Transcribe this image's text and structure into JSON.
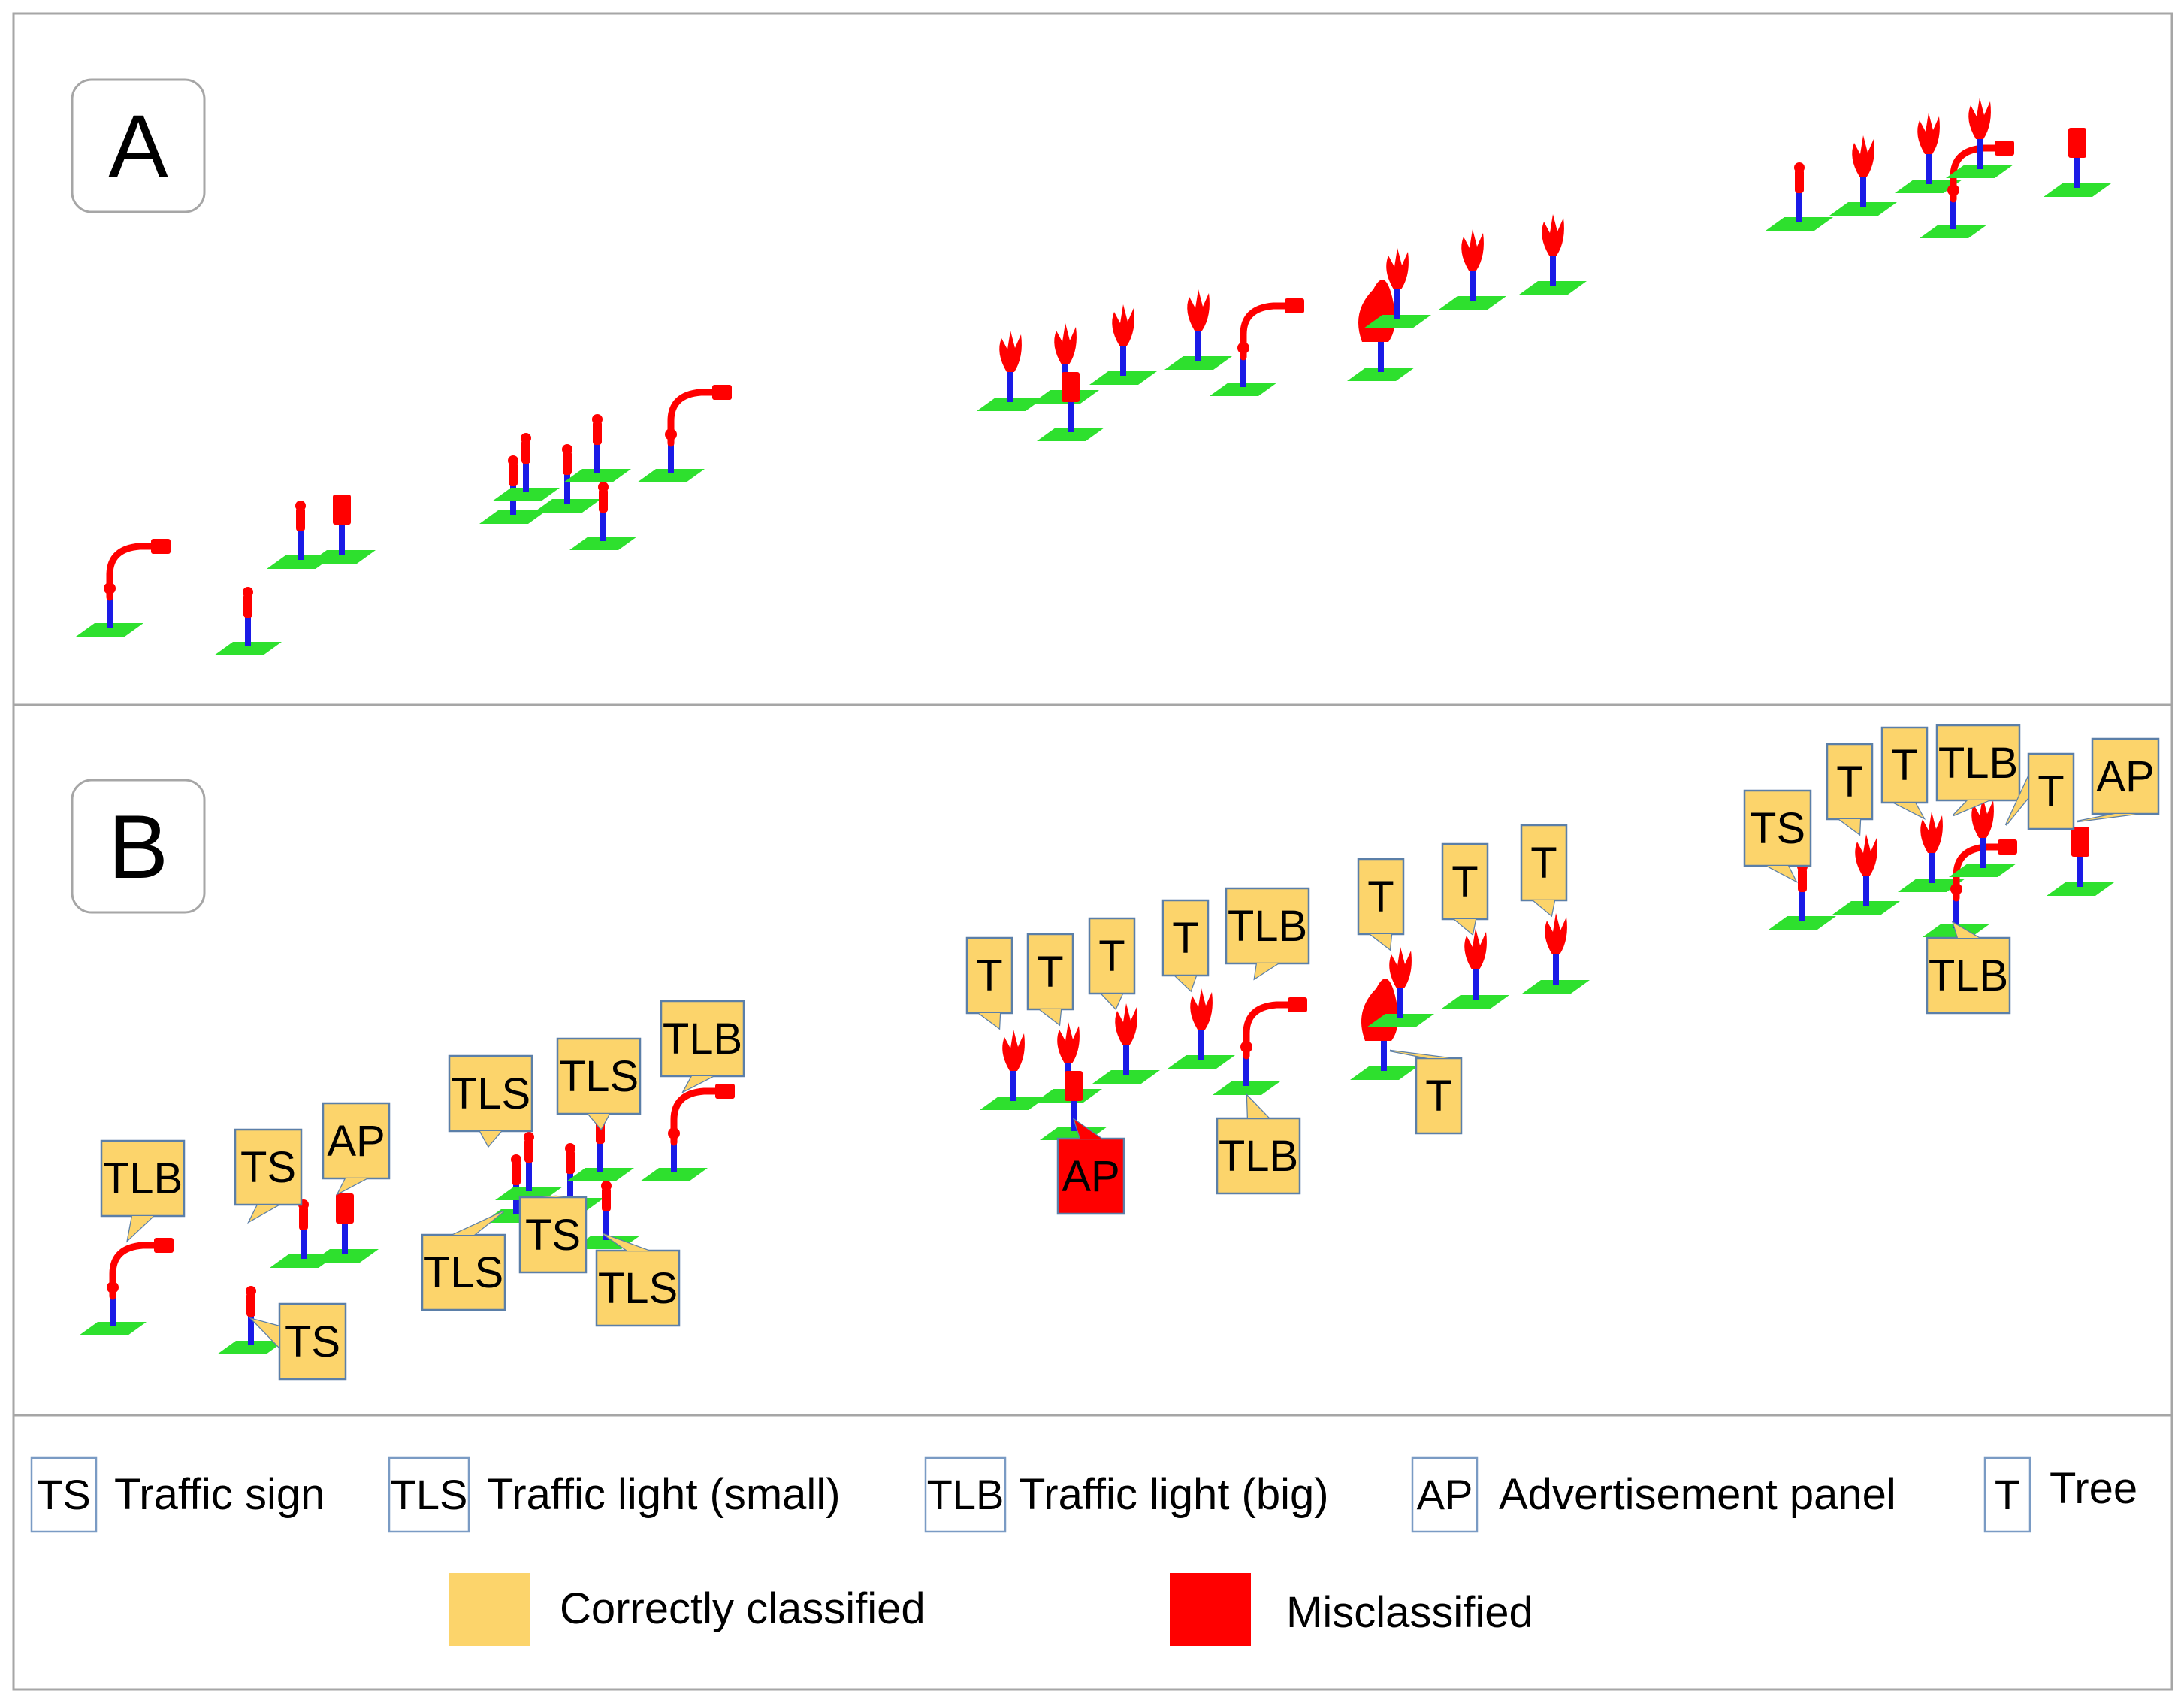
{
  "panels": {
    "a_label": "A",
    "b_label": "B"
  },
  "colors": {
    "correct": "#fcd46b",
    "misclassified": "#ff0000",
    "ground": "#2ee02e",
    "pole": "#1a1ae6",
    "object": "#ff0000"
  },
  "labels": [
    {
      "text": "TLB",
      "status": "correct"
    },
    {
      "text": "TS",
      "status": "correct"
    },
    {
      "text": "AP",
      "status": "correct"
    },
    {
      "text": "TS",
      "status": "correct"
    },
    {
      "text": "TLS",
      "status": "correct"
    },
    {
      "text": "TLS",
      "status": "correct"
    },
    {
      "text": "TLB",
      "status": "correct"
    },
    {
      "text": "TLS",
      "status": "correct"
    },
    {
      "text": "TS",
      "status": "correct"
    },
    {
      "text": "TLS",
      "status": "correct"
    },
    {
      "text": "T",
      "status": "correct"
    },
    {
      "text": "T",
      "status": "correct"
    },
    {
      "text": "T",
      "status": "correct"
    },
    {
      "text": "T",
      "status": "correct"
    },
    {
      "text": "TLB",
      "status": "correct"
    },
    {
      "text": "AP",
      "status": "misclassified"
    },
    {
      "text": "TLB",
      "status": "correct"
    },
    {
      "text": "T",
      "status": "correct"
    },
    {
      "text": "T",
      "status": "correct"
    },
    {
      "text": "T",
      "status": "correct"
    },
    {
      "text": "T",
      "status": "correct"
    },
    {
      "text": "TS",
      "status": "correct"
    },
    {
      "text": "T",
      "status": "correct"
    },
    {
      "text": "T",
      "status": "correct"
    },
    {
      "text": "TLB",
      "status": "correct"
    },
    {
      "text": "T",
      "status": "correct"
    },
    {
      "text": "AP",
      "status": "correct"
    },
    {
      "text": "TLB",
      "status": "correct"
    }
  ],
  "legend": {
    "classes": [
      {
        "abbr": "TS",
        "name": "Traffic sign"
      },
      {
        "abbr": "TLS",
        "name": "Traffic light (small)"
      },
      {
        "abbr": "TLB",
        "name": "Traffic light (big)"
      },
      {
        "abbr": "AP",
        "name": "Advertisement panel"
      },
      {
        "abbr": "T",
        "name": "Tree"
      }
    ],
    "correct_label": "Correctly classified",
    "misclassified_label": "Misclassified"
  }
}
